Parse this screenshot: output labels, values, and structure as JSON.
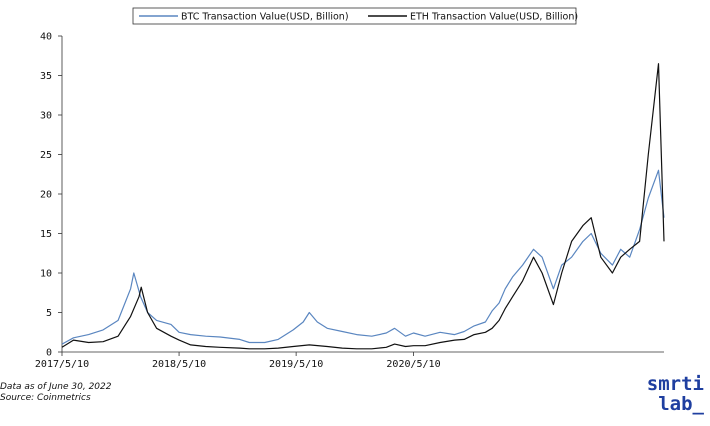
{
  "chart_data": {
    "type": "line",
    "x_range": [
      "2017-05-10",
      "2022-06-30"
    ],
    "x_ticks": [
      "2017/5/10",
      "2018/5/10",
      "2019/5/10",
      "2020/5/10"
    ],
    "ylim": [
      0,
      40
    ],
    "y_ticks": [
      0,
      5,
      10,
      15,
      20,
      25,
      30,
      35,
      40
    ],
    "grid": false,
    "legend": "top-center",
    "series": [
      {
        "name": "BTC Transaction Value(USD, Billion)",
        "color": "#5a86c0",
        "x": [
          "2017-05-10",
          "2017-06-15",
          "2017-08-01",
          "2017-09-15",
          "2017-11-01",
          "2017-12-10",
          "2017-12-20",
          "2018-01-10",
          "2018-02-01",
          "2018-03-01",
          "2018-04-15",
          "2018-05-10",
          "2018-06-15",
          "2018-08-01",
          "2018-09-15",
          "2018-11-15",
          "2018-12-15",
          "2019-02-01",
          "2019-03-15",
          "2019-05-01",
          "2019-06-01",
          "2019-06-20",
          "2019-07-15",
          "2019-08-15",
          "2019-10-01",
          "2019-11-15",
          "2020-01-01",
          "2020-02-15",
          "2020-03-12",
          "2020-04-15",
          "2020-05-10",
          "2020-06-15",
          "2020-08-01",
          "2020-09-15",
          "2020-10-15",
          "2020-11-15",
          "2020-12-20",
          "2021-01-10",
          "2021-02-01",
          "2021-02-20",
          "2021-03-15",
          "2021-04-15",
          "2021-05-19",
          "2021-06-15",
          "2021-07-20",
          "2021-08-15",
          "2021-09-15",
          "2021-10-20",
          "2021-11-15",
          "2021-12-15",
          "2022-01-20",
          "2022-02-15",
          "2022-03-15",
          "2022-04-15",
          "2022-05-12",
          "2022-06-13",
          "2022-06-30"
        ],
        "y": [
          1.0,
          1.8,
          2.2,
          2.8,
          4.0,
          8.0,
          10.0,
          7.0,
          5.0,
          4.0,
          3.5,
          2.5,
          2.2,
          2.0,
          1.9,
          1.6,
          1.2,
          1.2,
          1.6,
          2.8,
          3.8,
          5.0,
          3.8,
          3.0,
          2.6,
          2.2,
          2.0,
          2.4,
          3.0,
          2.0,
          2.4,
          2.0,
          2.5,
          2.2,
          2.6,
          3.3,
          3.8,
          5.2,
          6.2,
          8.0,
          9.5,
          11.0,
          13.0,
          12.0,
          8.0,
          11.0,
          12.0,
          14.0,
          15.0,
          12.5,
          11.0,
          13.0,
          12.0,
          15.5,
          19.5,
          23.0,
          17.0
        ]
      },
      {
        "name": "ETH Transaction Value(USD, Billion)",
        "color": "#111111",
        "x": [
          "2017-05-10",
          "2017-06-15",
          "2017-08-01",
          "2017-09-15",
          "2017-11-01",
          "2017-12-10",
          "2018-01-05",
          "2018-01-12",
          "2018-02-01",
          "2018-03-01",
          "2018-04-15",
          "2018-05-10",
          "2018-06-15",
          "2018-08-01",
          "2018-09-15",
          "2018-11-15",
          "2018-12-15",
          "2019-02-01",
          "2019-03-15",
          "2019-05-01",
          "2019-06-20",
          "2019-08-15",
          "2019-10-01",
          "2019-11-15",
          "2020-01-01",
          "2020-02-15",
          "2020-03-12",
          "2020-04-15",
          "2020-05-10",
          "2020-06-15",
          "2020-08-01",
          "2020-09-15",
          "2020-10-15",
          "2020-11-15",
          "2020-12-20",
          "2021-01-10",
          "2021-02-01",
          "2021-02-20",
          "2021-03-15",
          "2021-04-15",
          "2021-05-19",
          "2021-06-15",
          "2021-07-20",
          "2021-08-15",
          "2021-09-15",
          "2021-10-20",
          "2021-11-15",
          "2021-12-15",
          "2022-01-20",
          "2022-02-15",
          "2022-03-15",
          "2022-04-15",
          "2022-05-12",
          "2022-06-13",
          "2022-06-30"
        ],
        "y": [
          0.6,
          1.5,
          1.2,
          1.3,
          2.0,
          4.5,
          7.0,
          8.2,
          5.0,
          3.0,
          2.0,
          1.5,
          0.9,
          0.7,
          0.6,
          0.5,
          0.4,
          0.4,
          0.5,
          0.7,
          0.9,
          0.7,
          0.5,
          0.4,
          0.4,
          0.6,
          1.0,
          0.7,
          0.8,
          0.8,
          1.2,
          1.5,
          1.6,
          2.2,
          2.5,
          3.0,
          4.0,
          5.5,
          7.0,
          9.0,
          12.0,
          10.0,
          6.0,
          10.0,
          14.0,
          16.0,
          17.0,
          12.0,
          10.0,
          12.0,
          13.0,
          14.0,
          25.0,
          36.5,
          14.0
        ]
      }
    ]
  },
  "notes": {
    "line1": "Data as of June 30, 2022",
    "line2": "Source: Coinmetrics"
  },
  "brand": {
    "line1": "smrti",
    "line2": "lab_"
  }
}
